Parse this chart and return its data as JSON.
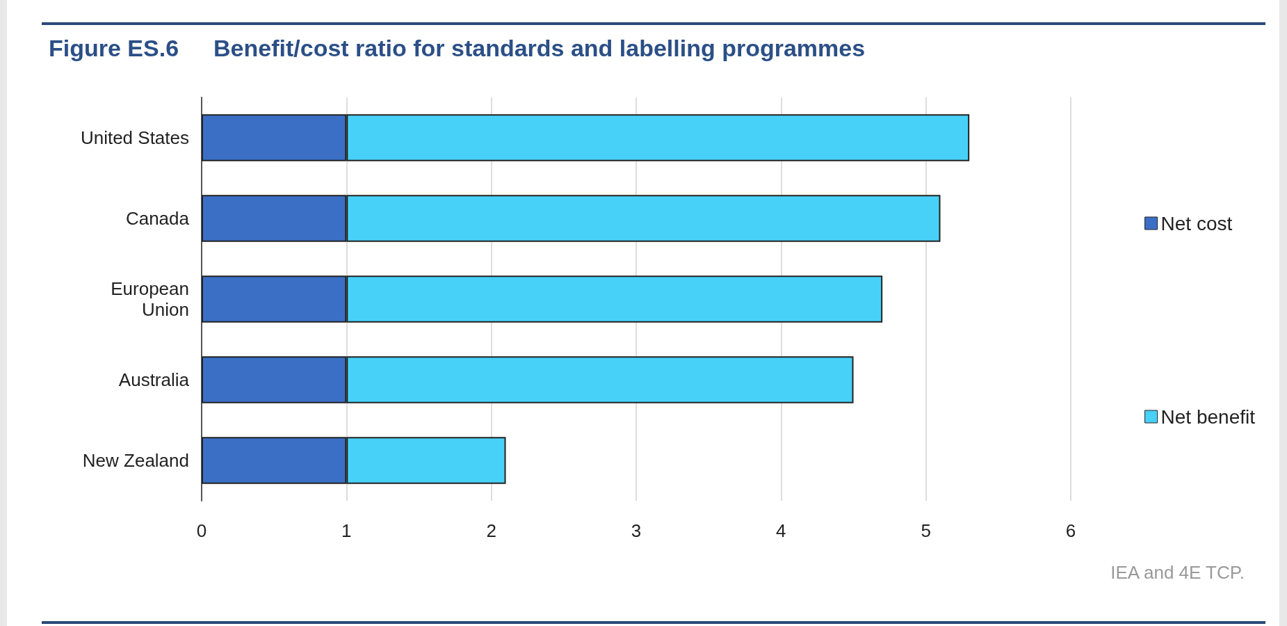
{
  "chart_data": {
    "type": "bar",
    "orientation": "horizontal",
    "stacked": true,
    "title": "Figure ES.6",
    "subtitle": "Benefit/cost ratio for standards and labelling programmes",
    "categories": [
      "United States",
      "Canada",
      "European\nUnion",
      "Australia",
      "New Zealand"
    ],
    "series": [
      {
        "name": "Net cost",
        "color": "#3b6fc6",
        "values": [
          1,
          1,
          1,
          1,
          1
        ]
      },
      {
        "name": "Net benefit",
        "color": "#48d1f8",
        "values": [
          4.3,
          4.1,
          3.7,
          3.5,
          1.1
        ]
      }
    ],
    "xlim": [
      0,
      6
    ],
    "xticks": [
      0,
      1,
      2,
      3,
      4,
      5,
      6
    ],
    "grid": "x",
    "legend": "right",
    "annotations": [
      "IEA and 4E TCP."
    ]
  }
}
